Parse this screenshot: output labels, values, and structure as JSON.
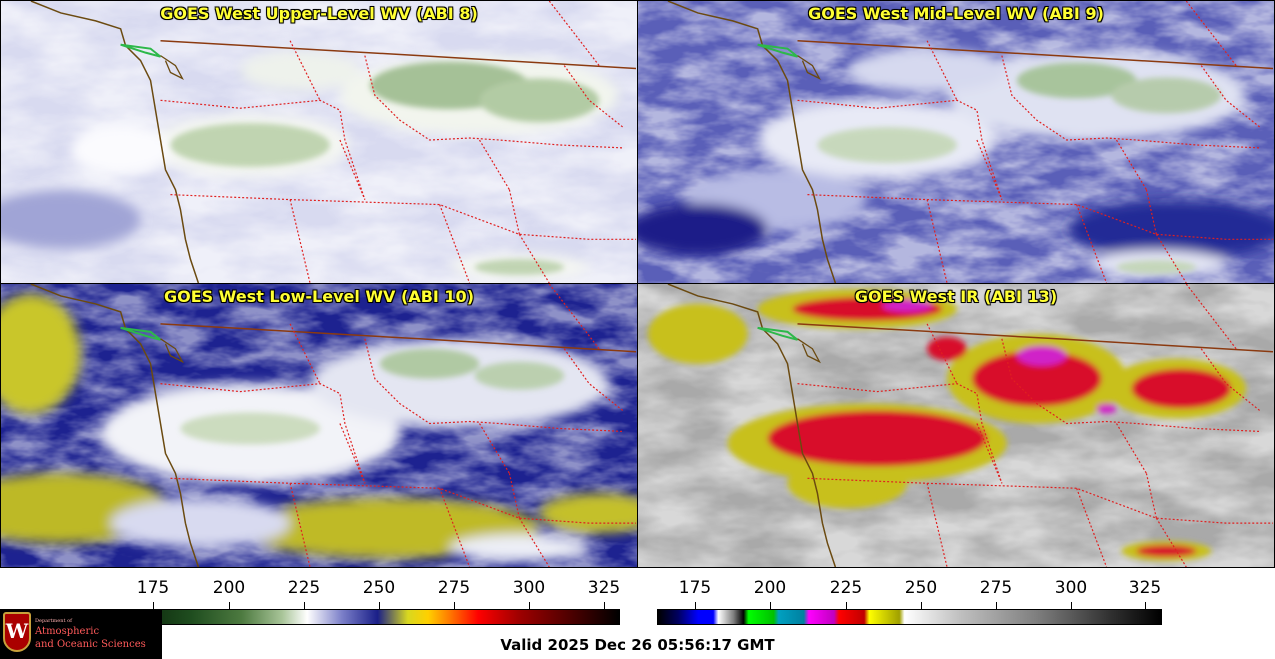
{
  "panels": [
    {
      "id": "upper",
      "title": "GOES West Upper-Level WV (ABI 8)"
    },
    {
      "id": "mid",
      "title": "GOES West Mid-Level WV (ABI 9)"
    },
    {
      "id": "low",
      "title": "GOES West Low-Level WV (ABI 10)"
    },
    {
      "id": "ir",
      "title": "GOES West IR (ABI 13)"
    }
  ],
  "colorbars": [
    {
      "name": "water-vapor",
      "ticks": [
        "175",
        "200",
        "225",
        "250",
        "275",
        "300",
        "325"
      ]
    },
    {
      "name": "infrared",
      "ticks": [
        "175",
        "200",
        "225",
        "250",
        "275",
        "300",
        "325"
      ]
    }
  ],
  "logo": {
    "department": "Department of",
    "line1": "Atmospheric",
    "line2": "and Oceanic Sciences"
  },
  "valid_time": "Valid 2025 Dec 26 05:56:17 GMT",
  "colors": {
    "title_text": "#ffff33",
    "state_border": "#e02020",
    "coastline": "#6b4a10",
    "intl_border": "#8b3a10"
  }
}
